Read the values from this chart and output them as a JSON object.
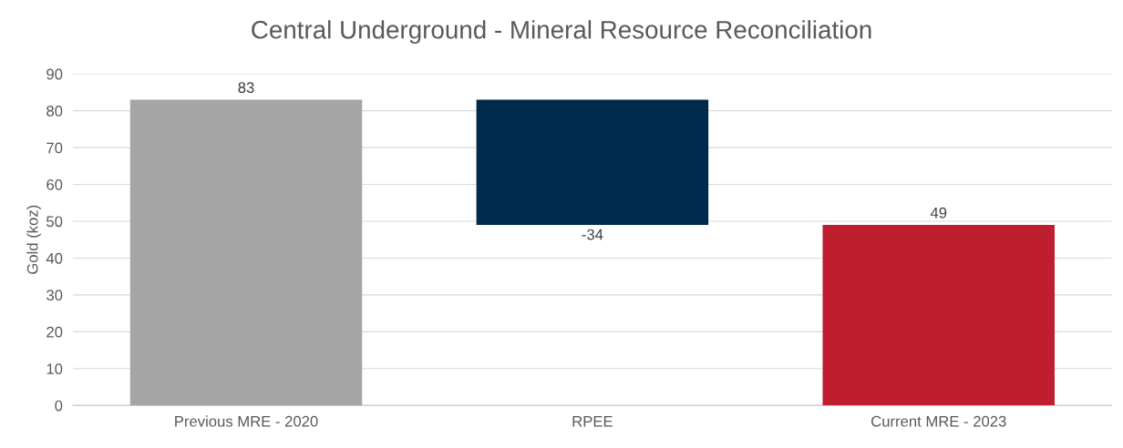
{
  "chart_data": {
    "type": "bar",
    "title": "Central Underground - Mineral Resource Reconciliation",
    "ylabel": "Gold (koz)",
    "categories": [
      "Previous MRE - 2020",
      "RPEE",
      "Current MRE - 2023"
    ],
    "values": [
      83,
      -34,
      49
    ],
    "base": [
      0,
      83,
      0
    ],
    "colors": [
      "#a5a5a5",
      "#002a4c",
      "#be1e2d"
    ],
    "ylim": [
      0,
      90
    ],
    "yticks": [
      0,
      10,
      20,
      30,
      40,
      50,
      60,
      70,
      80,
      90
    ],
    "grid": "y",
    "data_labels": true
  }
}
